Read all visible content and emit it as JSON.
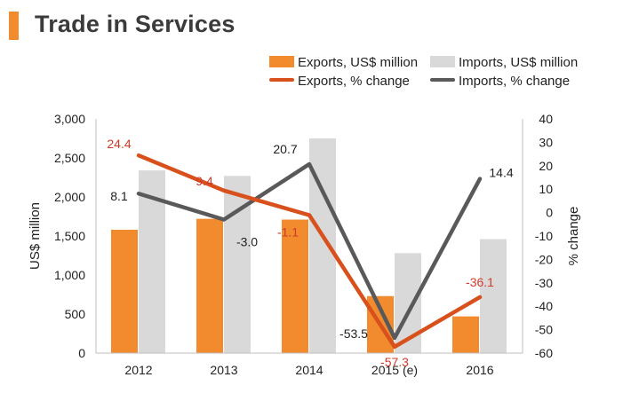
{
  "title": "Trade in Services",
  "colors": {
    "exports_bar": "#f28a2e",
    "imports_bar": "#d9d9d9",
    "exports_line": "#d8501c",
    "imports_line": "#595959",
    "exports_label": "#d23a2a",
    "imports_label": "#222222",
    "title_accent": "#f28a2e"
  },
  "legend": [
    {
      "label": "Exports, US$ million",
      "kind": "bar",
      "color": "#f28a2e"
    },
    {
      "label": "Imports, US$ million",
      "kind": "bar",
      "color": "#d9d9d9"
    },
    {
      "label": "Exports, % change",
      "kind": "line",
      "color": "#d8501c"
    },
    {
      "label": "Imports, % change",
      "kind": "line",
      "color": "#595959"
    }
  ],
  "chart_data": {
    "type": "bar",
    "combo": "bar+line",
    "categories": [
      "2012",
      "2013",
      "2014",
      "2015 (e)",
      "2016"
    ],
    "series": [
      {
        "name": "Exports, US$ million",
        "type": "bar",
        "axis": "left",
        "values": [
          1580,
          1720,
          1710,
          730,
          470
        ]
      },
      {
        "name": "Imports, US$ million",
        "type": "bar",
        "axis": "left",
        "values": [
          2340,
          2270,
          2750,
          1280,
          1460
        ]
      },
      {
        "name": "Exports, % change",
        "type": "line",
        "axis": "right",
        "values": [
          24.4,
          9.4,
          -1.1,
          -57.3,
          -36.1
        ],
        "labels": [
          "24.4",
          "9.4",
          "-1.1",
          "-57.3",
          "-36.1"
        ]
      },
      {
        "name": "Imports, % change",
        "type": "line",
        "axis": "right",
        "values": [
          8.1,
          -3.0,
          20.7,
          -53.5,
          14.4
        ],
        "labels": [
          "8.1",
          "-3.0",
          "20.7",
          "-53.5",
          "14.4"
        ]
      }
    ],
    "ylabel": "US$ million",
    "y2label": "% change",
    "ylim": [
      0,
      3000
    ],
    "y2lim": [
      -60,
      40
    ],
    "yticks": [
      "0",
      "500",
      "1,000",
      "1,500",
      "2,000",
      "2,500",
      "3,000"
    ],
    "y2ticks": [
      "-60",
      "-50",
      "-40",
      "-30",
      "-20",
      "-10",
      "0",
      "10",
      "20",
      "30",
      "40"
    ],
    "grid": false,
    "legend_position": "top-right"
  }
}
